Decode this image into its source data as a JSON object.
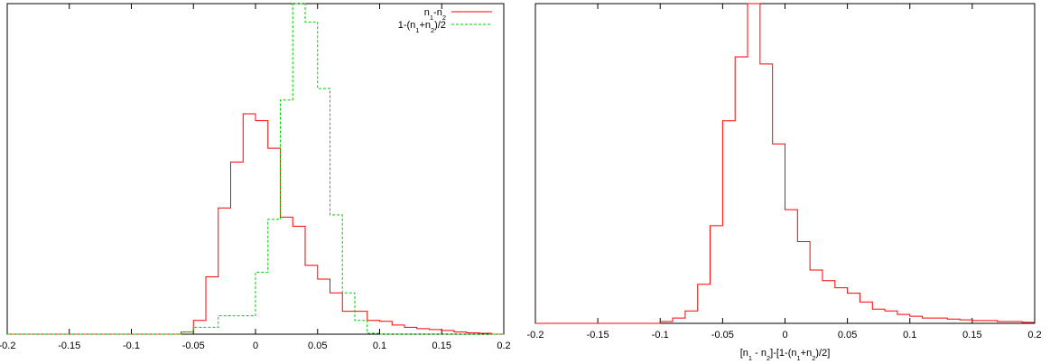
{
  "colors": {
    "red": "#ff0000",
    "green": "#00cc00",
    "axis": "#000000"
  },
  "chart_data": [
    {
      "type": "histogram",
      "xlabel": "",
      "ylabel": "",
      "xlim": [
        -0.2,
        0.2
      ],
      "ylim": [
        0,
        7.2
      ],
      "x_tick_values": [
        -0.2,
        -0.15,
        -0.1,
        -0.05,
        0,
        0.05,
        0.1,
        0.15,
        0.2
      ],
      "x_tick_labels": [
        "-0.2",
        "-0.15",
        "-0.1",
        "-0.05",
        "0",
        "0.05",
        "0.1",
        "0.15",
        "0.2"
      ],
      "y_ticks_shown": false,
      "grid": false,
      "legend_position": "top-right",
      "bin_width": 0.01,
      "series": [
        {
          "name_text": "n1-n2",
          "color": "red",
          "line_style": "solid",
          "bin_starts": [
            -0.2,
            -0.19,
            -0.18,
            -0.17,
            -0.16,
            -0.15,
            -0.14,
            -0.13,
            -0.12,
            -0.11,
            -0.1,
            -0.09,
            -0.08,
            -0.07,
            -0.06,
            -0.05,
            -0.04,
            -0.03,
            -0.02,
            -0.01,
            0,
            0.01,
            0.02,
            0.03,
            0.04,
            0.05,
            0.06,
            0.07,
            0.08,
            0.09,
            0.1,
            0.11,
            0.12,
            0.13,
            0.14,
            0.15,
            0.16,
            0.17,
            0.18,
            0.19
          ],
          "values": [
            0,
            0,
            0,
            0,
            0,
            0,
            0,
            0,
            0,
            0,
            0,
            0,
            0,
            0,
            0.05,
            0.3,
            1.25,
            2.75,
            3.75,
            4.8,
            4.65,
            4.05,
            2.55,
            2.35,
            1.5,
            1.2,
            0.9,
            0.5,
            0.5,
            0.3,
            0.28,
            0.2,
            0.15,
            0.12,
            0.1,
            0.08,
            0.05,
            0.03,
            0.02,
            0
          ]
        },
        {
          "name_text": "1-(n1+n2)/2",
          "color": "green",
          "line_style": "dashed",
          "bin_starts": [
            -0.2,
            -0.19,
            -0.18,
            -0.17,
            -0.16,
            -0.15,
            -0.14,
            -0.13,
            -0.12,
            -0.11,
            -0.1,
            -0.09,
            -0.08,
            -0.07,
            -0.06,
            -0.05,
            -0.04,
            -0.03,
            -0.02,
            -0.01,
            0,
            0.01,
            0.02,
            0.03,
            0.04,
            0.05,
            0.06,
            0.07,
            0.08,
            0.09,
            0.1,
            0.11,
            0.12,
            0.13,
            0.14,
            0.15,
            0.16,
            0.17,
            0.18,
            0.19
          ],
          "values": [
            0,
            0,
            0,
            0,
            0,
            0,
            0,
            0,
            0,
            0,
            0,
            0,
            0,
            0,
            0.05,
            0.15,
            0.15,
            0.4,
            0.4,
            0.4,
            1.35,
            2.5,
            5.1,
            7.2,
            6.8,
            5.35,
            2.6,
            0.9,
            0.3,
            0.02,
            0,
            0,
            0,
            0,
            0,
            0,
            0,
            0,
            0,
            0
          ]
        }
      ],
      "legend": [
        {
          "label_parts": [
            [
              "n",
              false
            ],
            [
              "1",
              true
            ],
            [
              "-n",
              false
            ],
            [
              "2",
              true
            ]
          ]
        },
        {
          "label_parts": [
            [
              "1-(n",
              false
            ],
            [
              "1",
              true
            ],
            [
              "+n",
              false
            ],
            [
              "2",
              true
            ],
            [
              ")/2",
              false
            ]
          ]
        }
      ]
    },
    {
      "type": "histogram",
      "xlabel": "[n1 - n2]-[1-(n1+n2)/2]",
      "xlabel_parts": [
        [
          "[n",
          false
        ],
        [
          "1",
          true
        ],
        [
          " - n",
          false
        ],
        [
          "2",
          true
        ],
        [
          "]-[1-(n",
          false
        ],
        [
          "1",
          true
        ],
        [
          "+n",
          false
        ],
        [
          "2",
          true
        ],
        [
          ")/2]",
          false
        ]
      ],
      "ylabel": "",
      "xlim": [
        -0.2,
        0.2
      ],
      "ylim": [
        0,
        9.0
      ],
      "x_tick_values": [
        -0.2,
        -0.15,
        -0.1,
        -0.05,
        0,
        0.05,
        0.1,
        0.15,
        0.2
      ],
      "x_tick_labels": [
        "-0.2",
        "-0.15",
        "-0.1",
        "-0.05",
        "0",
        "0.05",
        "0.1",
        "0.15",
        "0.2"
      ],
      "y_ticks_shown": false,
      "grid": false,
      "bin_width": 0.01,
      "series": [
        {
          "color": "red",
          "line_style": "solid",
          "bin_starts": [
            -0.2,
            -0.19,
            -0.18,
            -0.17,
            -0.16,
            -0.15,
            -0.14,
            -0.13,
            -0.12,
            -0.11,
            -0.1,
            -0.09,
            -0.08,
            -0.07,
            -0.06,
            -0.05,
            -0.04,
            -0.03,
            -0.02,
            -0.01,
            0,
            0.01,
            0.02,
            0.03,
            0.04,
            0.05,
            0.06,
            0.07,
            0.08,
            0.09,
            0.1,
            0.11,
            0.12,
            0.13,
            0.14,
            0.15,
            0.16,
            0.17,
            0.18,
            0.19
          ],
          "values": [
            0,
            0,
            0,
            0,
            0,
            0,
            0,
            0,
            0,
            0,
            0.05,
            0.15,
            0.35,
            1.1,
            2.75,
            5.7,
            7.5,
            9.0,
            7.3,
            5.05,
            3.2,
            2.3,
            1.5,
            1.2,
            1.0,
            0.85,
            0.6,
            0.4,
            0.35,
            0.25,
            0.2,
            0.15,
            0.15,
            0.12,
            0.1,
            0.08,
            0.08,
            0.05,
            0.05,
            0.03
          ]
        }
      ]
    }
  ]
}
